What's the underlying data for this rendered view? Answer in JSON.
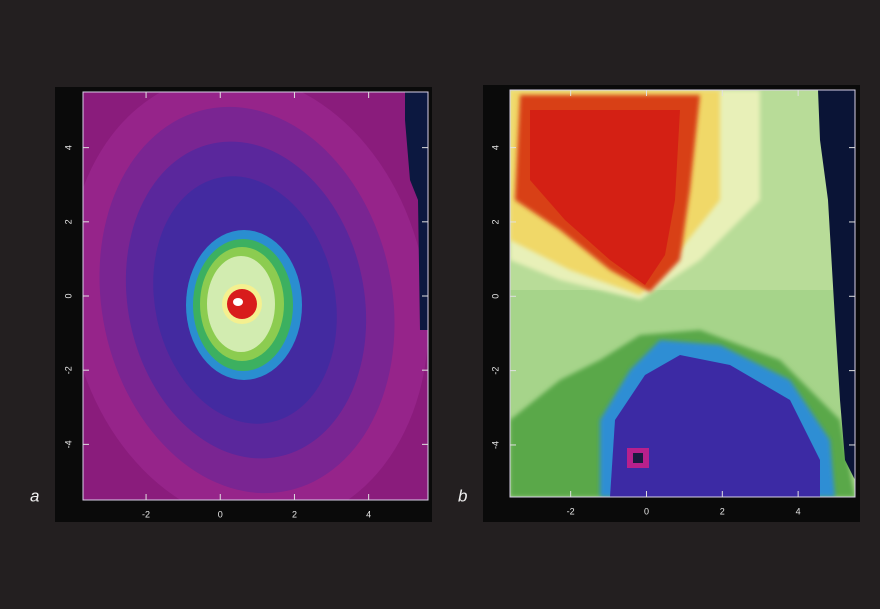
{
  "panels": [
    {
      "label": "a",
      "xlim": [
        -3.7,
        5.6
      ],
      "ylim": [
        -5.5,
        5.5
      ],
      "xticks": [
        -2,
        0,
        2,
        4
      ],
      "yticks": [
        4,
        2,
        0,
        -2,
        -4
      ]
    },
    {
      "label": "b",
      "xlim": [
        -3.6,
        5.5
      ],
      "ylim": [
        -5.4,
        5.55
      ],
      "xticks": [
        -2,
        0,
        2,
        4
      ],
      "yticks": [
        4,
        2,
        0,
        -2,
        -4
      ]
    }
  ]
}
